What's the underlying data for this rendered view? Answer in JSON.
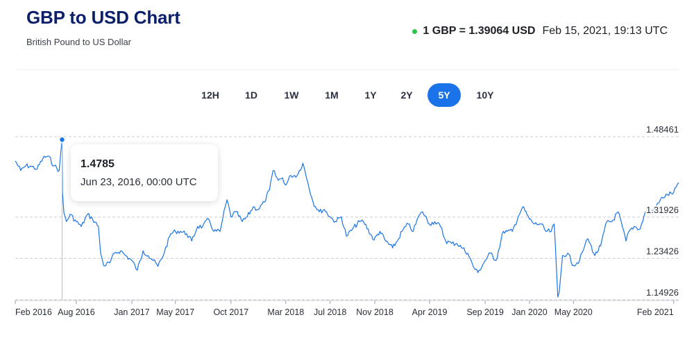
{
  "header": {
    "title": "GBP to USD Chart",
    "subtitle": "British Pound to US Dollar",
    "rate_label": "1 GBP = 1.39064 USD",
    "timestamp": "Feb 15, 2021, 19:13 UTC",
    "live_dot_color": "#2ec24a"
  },
  "ranges": {
    "items": [
      "12H",
      "1D",
      "1W",
      "1M",
      "1Y",
      "2Y",
      "5Y",
      "10Y"
    ],
    "selected": "5Y"
  },
  "tooltip": {
    "value": "1.4785",
    "date": "Jun 23, 2016, 00:00 UTC"
  },
  "colors": {
    "line": "#1a73e8",
    "accent": "#1a73e8",
    "title": "#0b1f6b"
  },
  "chart_data": {
    "type": "line",
    "title": "GBP to USD Chart",
    "subtitle": "British Pound to US Dollar",
    "xlabel": "",
    "ylabel": "",
    "ylim": [
      1.14926,
      1.48461
    ],
    "y_ticks": [
      1.48461,
      1.31926,
      1.23426,
      1.14926
    ],
    "y_tick_labels": [
      "1.48461",
      "1.31926",
      "1.23426",
      "1.14926"
    ],
    "x_tick_labels": [
      "Feb 2016",
      "Aug 2016",
      "Jan 2017",
      "May 2017",
      "Oct 2017",
      "Mar 2018",
      "Jul 2018",
      "Nov 2018",
      "Apr 2019",
      "Sep 2019",
      "Jan 2020",
      "May 2020",
      "Feb 2021"
    ],
    "x_tick_dates": [
      "2016-02-15",
      "2016-08-01",
      "2017-01-01",
      "2017-05-01",
      "2017-10-01",
      "2018-03-01",
      "2018-07-01",
      "2018-11-01",
      "2019-04-01",
      "2019-09-01",
      "2020-01-01",
      "2020-05-01",
      "2021-02-01"
    ],
    "x_range": [
      "2016-02-15",
      "2021-02-15"
    ],
    "grid": "horizontal dashed",
    "highlight": {
      "x": "2016-06-23",
      "y": 1.4785
    },
    "series": [
      {
        "x": [
          "2016-02-15",
          "2016-03-01",
          "2016-03-15",
          "2016-04-01",
          "2016-04-15",
          "2016-05-01",
          "2016-05-15",
          "2016-06-01",
          "2016-06-15",
          "2016-06-23",
          "2016-06-24",
          "2016-06-28",
          "2016-07-05",
          "2016-07-15",
          "2016-08-01",
          "2016-08-15",
          "2016-09-01",
          "2016-09-15",
          "2016-10-01",
          "2016-10-07",
          "2016-10-15",
          "2016-11-01",
          "2016-11-15",
          "2016-12-01",
          "2016-12-15",
          "2017-01-01",
          "2017-01-16",
          "2017-02-01",
          "2017-02-15",
          "2017-03-01",
          "2017-03-14",
          "2017-04-01",
          "2017-04-18",
          "2017-05-01",
          "2017-05-15",
          "2017-06-01",
          "2017-06-15",
          "2017-07-01",
          "2017-07-15",
          "2017-08-01",
          "2017-08-15",
          "2017-09-01",
          "2017-09-08",
          "2017-09-20",
          "2017-10-01",
          "2017-10-15",
          "2017-11-01",
          "2017-11-15",
          "2017-12-01",
          "2017-12-15",
          "2018-01-01",
          "2018-01-15",
          "2018-01-25",
          "2018-02-08",
          "2018-02-20",
          "2018-03-01",
          "2018-03-15",
          "2018-04-01",
          "2018-04-17",
          "2018-05-01",
          "2018-05-15",
          "2018-06-01",
          "2018-06-15",
          "2018-07-01",
          "2018-07-15",
          "2018-08-01",
          "2018-08-15",
          "2018-09-01",
          "2018-09-20",
          "2018-10-01",
          "2018-10-30",
          "2018-11-15",
          "2018-12-01",
          "2018-12-20",
          "2019-01-02",
          "2019-01-15",
          "2019-02-01",
          "2019-02-15",
          "2019-03-01",
          "2019-03-13",
          "2019-04-01",
          "2019-04-15",
          "2019-05-01",
          "2019-05-15",
          "2019-06-01",
          "2019-06-15",
          "2019-07-01",
          "2019-07-15",
          "2019-08-01",
          "2019-08-12",
          "2019-09-01",
          "2019-09-15",
          "2019-10-01",
          "2019-10-21",
          "2019-11-01",
          "2019-11-15",
          "2019-12-01",
          "2019-12-13",
          "2020-01-01",
          "2020-01-15",
          "2020-02-01",
          "2020-02-15",
          "2020-03-01",
          "2020-03-09",
          "2020-03-19",
          "2020-03-23",
          "2020-04-01",
          "2020-04-15",
          "2020-05-01",
          "2020-05-18",
          "2020-06-01",
          "2020-06-10",
          "2020-06-29",
          "2020-07-15",
          "2020-08-01",
          "2020-08-15",
          "2020-09-01",
          "2020-09-23",
          "2020-10-01",
          "2020-10-15",
          "2020-11-01",
          "2020-11-15",
          "2020-12-01",
          "2020-12-15",
          "2021-01-01",
          "2021-01-15",
          "2021-02-01",
          "2021-02-15"
        ],
        "y": [
          1.435,
          1.415,
          1.425,
          1.423,
          1.418,
          1.44,
          1.445,
          1.425,
          1.415,
          1.4785,
          1.37,
          1.328,
          1.31,
          1.325,
          1.31,
          1.3,
          1.325,
          1.315,
          1.3,
          1.245,
          1.22,
          1.225,
          1.245,
          1.25,
          1.24,
          1.23,
          1.21,
          1.25,
          1.24,
          1.23,
          1.218,
          1.248,
          1.285,
          1.29,
          1.29,
          1.285,
          1.27,
          1.3,
          1.3,
          1.315,
          1.29,
          1.29,
          1.315,
          1.355,
          1.32,
          1.33,
          1.31,
          1.32,
          1.34,
          1.335,
          1.35,
          1.375,
          1.415,
          1.395,
          1.4,
          1.385,
          1.405,
          1.405,
          1.43,
          1.39,
          1.35,
          1.33,
          1.335,
          1.32,
          1.31,
          1.32,
          1.28,
          1.295,
          1.31,
          1.31,
          1.272,
          1.29,
          1.27,
          1.256,
          1.27,
          1.29,
          1.305,
          1.29,
          1.32,
          1.33,
          1.305,
          1.31,
          1.3,
          1.27,
          1.265,
          1.265,
          1.255,
          1.245,
          1.215,
          1.205,
          1.23,
          1.245,
          1.23,
          1.29,
          1.29,
          1.29,
          1.32,
          1.34,
          1.315,
          1.305,
          1.305,
          1.29,
          1.29,
          1.305,
          1.155,
          1.165,
          1.24,
          1.245,
          1.22,
          1.23,
          1.26,
          1.275,
          1.24,
          1.26,
          1.31,
          1.31,
          1.33,
          1.27,
          1.29,
          1.3,
          1.295,
          1.33,
          1.33,
          1.34,
          1.36,
          1.365,
          1.37,
          1.39
        ]
      }
    ]
  }
}
